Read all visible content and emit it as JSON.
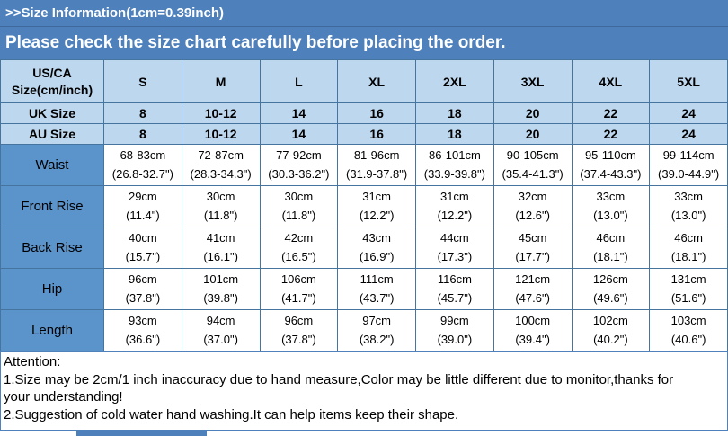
{
  "colors": {
    "banner_blue": "#4e80bc",
    "label_blue": "#5b93cb",
    "header_light_blue": "#bdd7ee",
    "grid_border": "#45759f",
    "text_on_banner": "#ffffff",
    "text_default": "#000000"
  },
  "banner": {
    "line1": ">>Size Information(1cm=0.39inch)",
    "line2": "Please check the size chart carefully before placing the order."
  },
  "table": {
    "corner_label": "US/CA\nSize(cm/inch)",
    "columns": [
      "S",
      "M",
      "L",
      "XL",
      "2XL",
      "3XL",
      "4XL",
      "5XL"
    ],
    "size_rows": [
      {
        "label": "UK Size",
        "values": [
          "8",
          "10-12",
          "14",
          "16",
          "18",
          "20",
          "22",
          "24"
        ]
      },
      {
        "label": "AU Size",
        "values": [
          "8",
          "10-12",
          "14",
          "16",
          "18",
          "20",
          "22",
          "24"
        ]
      }
    ],
    "measurement_rows": [
      {
        "label": "Waist",
        "cells": [
          {
            "cm": "68-83cm",
            "in": "(26.8-32.7\")"
          },
          {
            "cm": "72-87cm",
            "in": "(28.3-34.3\")"
          },
          {
            "cm": "77-92cm",
            "in": "(30.3-36.2\")"
          },
          {
            "cm": "81-96cm",
            "in": "(31.9-37.8\")"
          },
          {
            "cm": "86-101cm",
            "in": "(33.9-39.8\")"
          },
          {
            "cm": "90-105cm",
            "in": "(35.4-41.3\")"
          },
          {
            "cm": "95-110cm",
            "in": "(37.4-43.3\")"
          },
          {
            "cm": "99-114cm",
            "in": "(39.0-44.9\")"
          }
        ]
      },
      {
        "label": "Front Rise",
        "cells": [
          {
            "cm": "29cm",
            "in": "(11.4\")"
          },
          {
            "cm": "30cm",
            "in": "(11.8\")"
          },
          {
            "cm": "30cm",
            "in": "(11.8\")"
          },
          {
            "cm": "31cm",
            "in": "(12.2\")"
          },
          {
            "cm": "31cm",
            "in": "(12.2\")"
          },
          {
            "cm": "32cm",
            "in": "(12.6\")"
          },
          {
            "cm": "33cm",
            "in": "(13.0\")"
          },
          {
            "cm": "33cm",
            "in": "(13.0\")"
          }
        ]
      },
      {
        "label": "Back Rise",
        "cells": [
          {
            "cm": "40cm",
            "in": "(15.7\")"
          },
          {
            "cm": "41cm",
            "in": "(16.1\")"
          },
          {
            "cm": "42cm",
            "in": "(16.5\")"
          },
          {
            "cm": "43cm",
            "in": "(16.9\")"
          },
          {
            "cm": "44cm",
            "in": "(17.3\")"
          },
          {
            "cm": "45cm",
            "in": "(17.7\")"
          },
          {
            "cm": "46cm",
            "in": "(18.1\")"
          },
          {
            "cm": "46cm",
            "in": "(18.1\")"
          }
        ]
      },
      {
        "label": "Hip",
        "cells": [
          {
            "cm": "96cm",
            "in": "(37.8\")"
          },
          {
            "cm": "101cm",
            "in": "(39.8\")"
          },
          {
            "cm": "106cm",
            "in": "(41.7\")"
          },
          {
            "cm": "111cm",
            "in": "(43.7\")"
          },
          {
            "cm": "116cm",
            "in": "(45.7\")"
          },
          {
            "cm": "121cm",
            "in": "(47.6\")"
          },
          {
            "cm": "126cm",
            "in": "(49.6\")"
          },
          {
            "cm": "131cm",
            "in": "(51.6\")"
          }
        ]
      },
      {
        "label": "Length",
        "cells": [
          {
            "cm": "93cm",
            "in": "(36.6\")"
          },
          {
            "cm": "94cm",
            "in": "(37.0\")"
          },
          {
            "cm": "96cm",
            "in": "(37.8\")"
          },
          {
            "cm": "97cm",
            "in": "(38.2\")"
          },
          {
            "cm": "99cm",
            "in": "(39.0\")"
          },
          {
            "cm": "100cm",
            "in": "(39.4\")"
          },
          {
            "cm": "102cm",
            "in": "(40.2\")"
          },
          {
            "cm": "103cm",
            "in": "(40.6\")"
          }
        ]
      }
    ]
  },
  "attention": {
    "lines": [
      "Attention:",
      "1.Size may be 2cm/1 inch inaccuracy due to hand measure,Color may be little different due to monitor,thanks for",
      "your understanding!",
      "2.Suggestion of cold water hand washing.It can help items keep their shape."
    ]
  }
}
